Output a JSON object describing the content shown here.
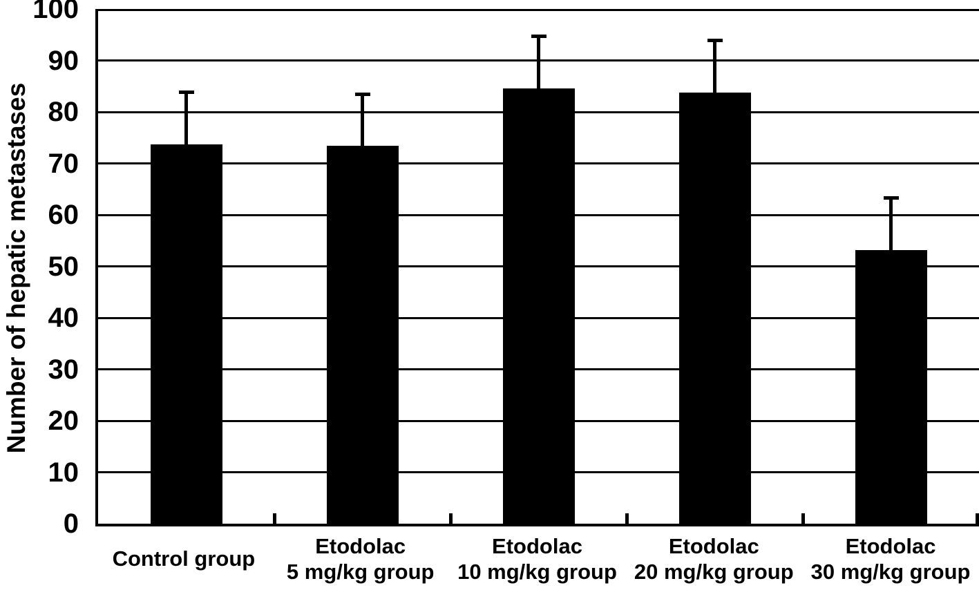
{
  "figure": {
    "background": "#ffffff",
    "bar_color": "#000000",
    "axis_color": "#000000",
    "grid_color": "#000000"
  },
  "chart_data": {
    "type": "bar",
    "title": "",
    "xlabel": "",
    "ylabel": "Number of hepatic metastases",
    "ylim": [
      0,
      100
    ],
    "ytick_interval": 10,
    "yticks": [
      0,
      10,
      20,
      30,
      40,
      50,
      60,
      70,
      80,
      90,
      100
    ],
    "grid": "horizontal",
    "legend_position": "none",
    "categories": [
      "Control group",
      "Etodolac 5 mg/kg group",
      "Etodolac 10 mg/kg group",
      "Etodolac 20 mg/kg group",
      "Etodolac 30 mg/kg group"
    ],
    "category_label_lines": [
      [
        "Control group"
      ],
      [
        "Etodolac",
        "5 mg/kg group"
      ],
      [
        "Etodolac",
        "10 mg/kg group"
      ],
      [
        "Etodolac",
        "20 mg/kg group"
      ],
      [
        "Etodolac",
        "30 mg/kg group"
      ]
    ],
    "series": [
      {
        "name": "Number of hepatic metastases",
        "values": [
          73.7,
          73.4,
          84.6,
          83.8,
          53.2
        ],
        "error_up": [
          10.1,
          9.9,
          10.0,
          10.0,
          10.0
        ]
      }
    ]
  }
}
